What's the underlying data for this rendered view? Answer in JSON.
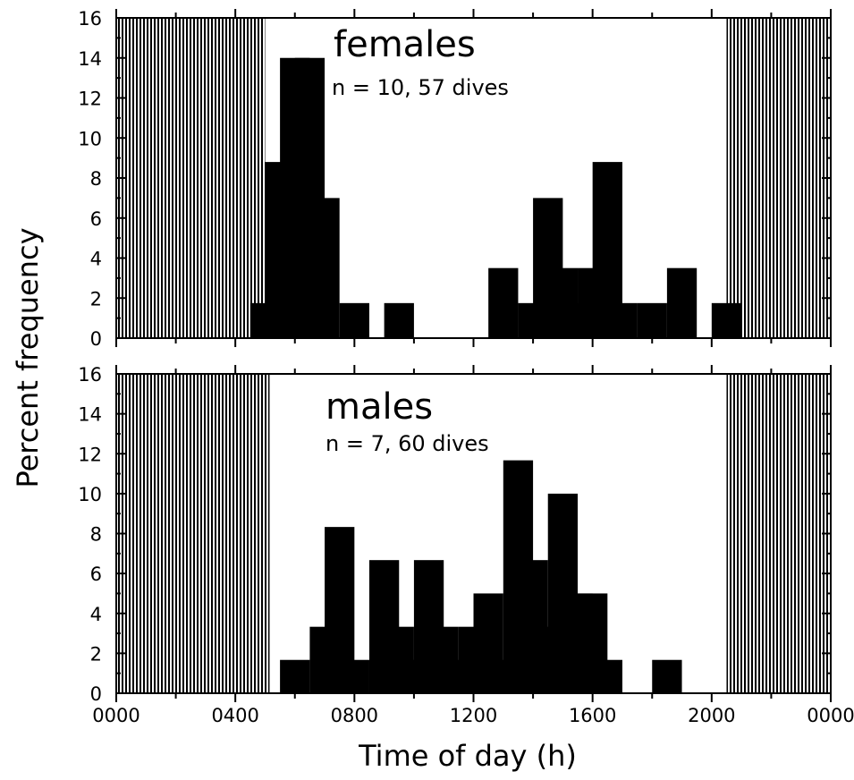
{
  "chart_data": {
    "type": "bar",
    "xlabel": "Time of day (h)",
    "ylabel": "Percent frequency",
    "x_tick_labels": [
      "0000",
      "0400",
      "0800",
      "1200",
      "1600",
      "2000",
      "0000"
    ],
    "x_ticks_hours": [
      0,
      4,
      8,
      12,
      16,
      20,
      24
    ],
    "xlim_hours": [
      0,
      24
    ],
    "bin_width_hours": 1,
    "ylim": [
      0,
      16
    ],
    "y_ticks": [
      0,
      2,
      4,
      6,
      8,
      10,
      12,
      14,
      16
    ],
    "panels": [
      {
        "title": "females",
        "subtitle": "n = 10, 57 dives",
        "night_shading_hours": [
          [
            0,
            5
          ],
          [
            20.5,
            24
          ]
        ],
        "bars": [
          {
            "x": 4.5,
            "value": 1.75
          },
          {
            "x": 5.0,
            "value": 8.8
          },
          {
            "x": 5.5,
            "value": 14.0
          },
          {
            "x": 6.0,
            "value": 14.0
          },
          {
            "x": 6.5,
            "value": 7.0
          },
          {
            "x": 7.5,
            "value": 1.75
          },
          {
            "x": 9.0,
            "value": 1.75
          },
          {
            "x": 12.5,
            "value": 3.5
          },
          {
            "x": 13.5,
            "value": 1.75
          },
          {
            "x": 14.0,
            "value": 7.0
          },
          {
            "x": 14.5,
            "value": 3.5
          },
          {
            "x": 15.0,
            "value": 1.75
          },
          {
            "x": 15.5,
            "value": 3.5
          },
          {
            "x": 16.0,
            "value": 8.8
          },
          {
            "x": 16.5,
            "value": 1.75
          },
          {
            "x": 17.5,
            "value": 1.75
          },
          {
            "x": 18.5,
            "value": 3.5
          },
          {
            "x": 20.0,
            "value": 1.75
          }
        ]
      },
      {
        "title": "males",
        "subtitle": "n = 7, 60 dives",
        "night_shading_hours": [
          [
            0,
            5.15
          ],
          [
            20.5,
            24
          ]
        ],
        "bars": [
          {
            "x": 5.5,
            "value": 1.67
          },
          {
            "x": 6.5,
            "value": 3.33
          },
          {
            "x": 7.0,
            "value": 8.33
          },
          {
            "x": 7.5,
            "value": 1.67
          },
          {
            "x": 8.5,
            "value": 6.67
          },
          {
            "x": 9.0,
            "value": 3.33
          },
          {
            "x": 9.5,
            "value": 1.67
          },
          {
            "x": 10.0,
            "value": 6.67
          },
          {
            "x": 10.5,
            "value": 3.33
          },
          {
            "x": 11.0,
            "value": 1.67
          },
          {
            "x": 11.5,
            "value": 3.33
          },
          {
            "x": 12.0,
            "value": 5.0
          },
          {
            "x": 12.5,
            "value": 1.67
          },
          {
            "x": 13.0,
            "value": 11.67
          },
          {
            "x": 13.5,
            "value": 6.67
          },
          {
            "x": 14.0,
            "value": 3.33
          },
          {
            "x": 14.5,
            "value": 10.0
          },
          {
            "x": 15.0,
            "value": 5.0
          },
          {
            "x": 15.5,
            "value": 5.0
          },
          {
            "x": 16.0,
            "value": 1.67
          },
          {
            "x": 18.0,
            "value": 1.67
          }
        ]
      }
    ]
  }
}
